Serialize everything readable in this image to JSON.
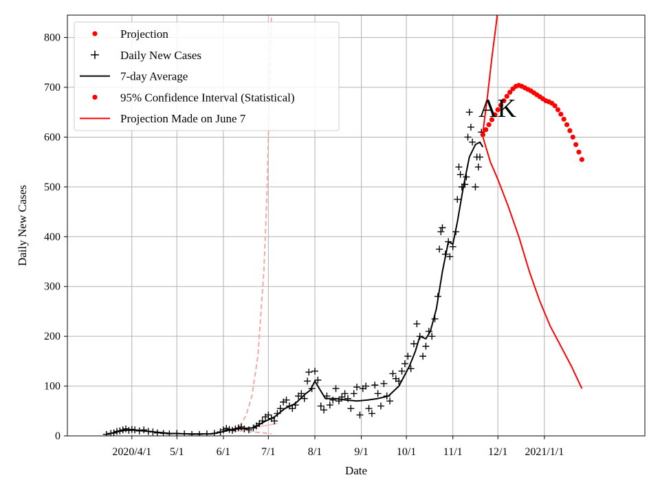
{
  "chart_data": {
    "type": "line",
    "title": "",
    "annotation": "AK",
    "xlabel": "Date",
    "ylabel": "Daily New Cases",
    "xlim": [
      "2020-02-18",
      "2021-03-09"
    ],
    "ylim": [
      0,
      845
    ],
    "grid": true,
    "legend": {
      "position": "top-left",
      "entries": [
        {
          "label": "Projection",
          "marker": "dot",
          "color": "#ff0000"
        },
        {
          "label": "Daily New Cases",
          "marker": "plus",
          "color": "#000000"
        },
        {
          "label": "7-day Average",
          "marker": "line",
          "color": "#000000"
        },
        {
          "label": "95% Confidence Interval (Statistical)",
          "marker": "dot",
          "color": "#ff0000"
        },
        {
          "label": "Projection Made on June 7",
          "marker": "line",
          "color": "#ff0000"
        }
      ]
    },
    "x_ticks": [
      {
        "date": "2020-04-01",
        "label": "2020/4/1"
      },
      {
        "date": "2020-05-01",
        "label": "5/1"
      },
      {
        "date": "2020-06-01",
        "label": "6/1"
      },
      {
        "date": "2020-07-01",
        "label": "7/1"
      },
      {
        "date": "2020-08-01",
        "label": "8/1"
      },
      {
        "date": "2020-09-01",
        "label": "9/1"
      },
      {
        "date": "2020-10-01",
        "label": "10/1"
      },
      {
        "date": "2020-11-01",
        "label": "11/1"
      },
      {
        "date": "2020-12-01",
        "label": "12/1"
      },
      {
        "date": "2021-01-01",
        "label": "2021/1/1"
      }
    ],
    "y_ticks": [
      0,
      100,
      200,
      300,
      400,
      500,
      600,
      700,
      800
    ],
    "series": [
      {
        "name": "Daily New Cases",
        "style": "plus",
        "color": "#000000",
        "points": [
          [
            "2020-03-15",
            3
          ],
          [
            "2020-03-18",
            5
          ],
          [
            "2020-03-20",
            6
          ],
          [
            "2020-03-22",
            9
          ],
          [
            "2020-03-24",
            10
          ],
          [
            "2020-03-26",
            12
          ],
          [
            "2020-03-28",
            14
          ],
          [
            "2020-03-30",
            11
          ],
          [
            "2020-04-01",
            13
          ],
          [
            "2020-04-03",
            12
          ],
          [
            "2020-04-06",
            10
          ],
          [
            "2020-04-09",
            12
          ],
          [
            "2020-04-12",
            9
          ],
          [
            "2020-04-15",
            8
          ],
          [
            "2020-04-18",
            6
          ],
          [
            "2020-04-22",
            5
          ],
          [
            "2020-04-26",
            4
          ],
          [
            "2020-05-01",
            5
          ],
          [
            "2020-05-06",
            4
          ],
          [
            "2020-05-11",
            3
          ],
          [
            "2020-05-16",
            3
          ],
          [
            "2020-05-21",
            4
          ],
          [
            "2020-05-26",
            5
          ],
          [
            "2020-05-30",
            8
          ],
          [
            "2020-06-01",
            12
          ],
          [
            "2020-06-03",
            15
          ],
          [
            "2020-06-05",
            13
          ],
          [
            "2020-06-07",
            11
          ],
          [
            "2020-06-09",
            14
          ],
          [
            "2020-06-11",
            16
          ],
          [
            "2020-06-13",
            18
          ],
          [
            "2020-06-15",
            14
          ],
          [
            "2020-06-18",
            12
          ],
          [
            "2020-06-21",
            16
          ],
          [
            "2020-06-23",
            20
          ],
          [
            "2020-06-25",
            25
          ],
          [
            "2020-06-27",
            30
          ],
          [
            "2020-06-29",
            38
          ],
          [
            "2020-07-01",
            42
          ],
          [
            "2020-07-03",
            35
          ],
          [
            "2020-07-05",
            30
          ],
          [
            "2020-07-07",
            45
          ],
          [
            "2020-07-09",
            55
          ],
          [
            "2020-07-11",
            68
          ],
          [
            "2020-07-13",
            72
          ],
          [
            "2020-07-15",
            60
          ],
          [
            "2020-07-17",
            55
          ],
          [
            "2020-07-19",
            62
          ],
          [
            "2020-07-21",
            80
          ],
          [
            "2020-07-23",
            85
          ],
          [
            "2020-07-25",
            75
          ],
          [
            "2020-07-27",
            110
          ],
          [
            "2020-07-28",
            128
          ],
          [
            "2020-07-30",
            95
          ],
          [
            "2020-08-01",
            130
          ],
          [
            "2020-08-03",
            112
          ],
          [
            "2020-08-05",
            60
          ],
          [
            "2020-08-07",
            52
          ],
          [
            "2020-08-09",
            80
          ],
          [
            "2020-08-11",
            62
          ],
          [
            "2020-08-13",
            72
          ],
          [
            "2020-08-15",
            95
          ],
          [
            "2020-08-17",
            70
          ],
          [
            "2020-08-19",
            78
          ],
          [
            "2020-08-21",
            85
          ],
          [
            "2020-08-23",
            75
          ],
          [
            "2020-08-25",
            55
          ],
          [
            "2020-08-27",
            85
          ],
          [
            "2020-08-29",
            98
          ],
          [
            "2020-08-31",
            42
          ],
          [
            "2020-09-02",
            95
          ],
          [
            "2020-09-04",
            100
          ],
          [
            "2020-09-06",
            55
          ],
          [
            "2020-09-08",
            45
          ],
          [
            "2020-09-10",
            102
          ],
          [
            "2020-09-12",
            85
          ],
          [
            "2020-09-14",
            60
          ],
          [
            "2020-09-16",
            105
          ],
          [
            "2020-09-18",
            80
          ],
          [
            "2020-09-20",
            70
          ],
          [
            "2020-09-22",
            125
          ],
          [
            "2020-09-24",
            115
          ],
          [
            "2020-09-26",
            110
          ],
          [
            "2020-09-28",
            130
          ],
          [
            "2020-09-30",
            145
          ],
          [
            "2020-10-02",
            160
          ],
          [
            "2020-10-04",
            135
          ],
          [
            "2020-10-06",
            185
          ],
          [
            "2020-10-08",
            225
          ],
          [
            "2020-10-10",
            200
          ],
          [
            "2020-10-12",
            160
          ],
          [
            "2020-10-14",
            180
          ],
          [
            "2020-10-16",
            210
          ],
          [
            "2020-10-18",
            200
          ],
          [
            "2020-10-20",
            235
          ],
          [
            "2020-10-22",
            280
          ],
          [
            "2020-10-23",
            375
          ],
          [
            "2020-10-24",
            410
          ],
          [
            "2020-10-25",
            418
          ],
          [
            "2020-10-27",
            365
          ],
          [
            "2020-10-29",
            390
          ],
          [
            "2020-10-30",
            360
          ],
          [
            "2020-11-01",
            380
          ],
          [
            "2020-11-03",
            410
          ],
          [
            "2020-11-04",
            475
          ],
          [
            "2020-11-05",
            540
          ],
          [
            "2020-11-06",
            525
          ],
          [
            "2020-11-07",
            500
          ],
          [
            "2020-11-09",
            505
          ],
          [
            "2020-11-10",
            520
          ],
          [
            "2020-11-11",
            600
          ],
          [
            "2020-11-12",
            650
          ],
          [
            "2020-11-13",
            620
          ],
          [
            "2020-11-14",
            590
          ],
          [
            "2020-11-16",
            500
          ],
          [
            "2020-11-17",
            560
          ],
          [
            "2020-11-18",
            540
          ],
          [
            "2020-11-19",
            560
          ],
          [
            "2020-11-20",
            610
          ]
        ]
      },
      {
        "name": "7-day Average",
        "style": "line",
        "color": "#000000",
        "points": [
          [
            "2020-03-15",
            3
          ],
          [
            "2020-03-22",
            8
          ],
          [
            "2020-03-29",
            12
          ],
          [
            "2020-04-05",
            11
          ],
          [
            "2020-04-12",
            9
          ],
          [
            "2020-04-19",
            7
          ],
          [
            "2020-04-26",
            5
          ],
          [
            "2020-05-10",
            4
          ],
          [
            "2020-05-24",
            4
          ],
          [
            "2020-05-31",
            8
          ],
          [
            "2020-06-07",
            13
          ],
          [
            "2020-06-14",
            15
          ],
          [
            "2020-06-21",
            16
          ],
          [
            "2020-06-28",
            28
          ],
          [
            "2020-07-05",
            38
          ],
          [
            "2020-07-12",
            55
          ],
          [
            "2020-07-19",
            65
          ],
          [
            "2020-07-26",
            85
          ],
          [
            "2020-07-29",
            92
          ],
          [
            "2020-08-01",
            110
          ],
          [
            "2020-08-04",
            95
          ],
          [
            "2020-08-08",
            75
          ],
          [
            "2020-08-15",
            75
          ],
          [
            "2020-08-22",
            72
          ],
          [
            "2020-08-29",
            70
          ],
          [
            "2020-09-05",
            72
          ],
          [
            "2020-09-12",
            75
          ],
          [
            "2020-09-19",
            80
          ],
          [
            "2020-09-26",
            100
          ],
          [
            "2020-10-03",
            140
          ],
          [
            "2020-10-07",
            170
          ],
          [
            "2020-10-10",
            200
          ],
          [
            "2020-10-14",
            195
          ],
          [
            "2020-10-17",
            210
          ],
          [
            "2020-10-21",
            255
          ],
          [
            "2020-10-25",
            330
          ],
          [
            "2020-10-29",
            390
          ],
          [
            "2020-11-01",
            385
          ],
          [
            "2020-11-04",
            430
          ],
          [
            "2020-11-08",
            500
          ],
          [
            "2020-11-12",
            560
          ],
          [
            "2020-11-16",
            585
          ],
          [
            "2020-11-19",
            590
          ],
          [
            "2020-11-21",
            580
          ]
        ]
      },
      {
        "name": "Projection",
        "style": "dots",
        "color": "#ff0000",
        "points": [
          [
            "2020-11-21",
            605
          ],
          [
            "2020-11-23",
            615
          ],
          [
            "2020-11-25",
            625
          ],
          [
            "2020-11-27",
            635
          ],
          [
            "2020-11-29",
            645
          ],
          [
            "2020-12-01",
            655
          ],
          [
            "2020-12-03",
            664
          ],
          [
            "2020-12-05",
            673
          ],
          [
            "2020-12-07",
            682
          ],
          [
            "2020-12-09",
            690
          ],
          [
            "2020-12-11",
            697
          ],
          [
            "2020-12-13",
            702
          ],
          [
            "2020-12-15",
            704
          ],
          [
            "2020-12-17",
            702
          ],
          [
            "2020-12-19",
            699
          ],
          [
            "2020-12-21",
            696
          ],
          [
            "2020-12-23",
            693
          ],
          [
            "2020-12-25",
            689
          ],
          [
            "2020-12-27",
            685
          ],
          [
            "2020-12-29",
            681
          ],
          [
            "2020-12-31",
            677
          ],
          [
            "2021-01-02",
            673
          ],
          [
            "2021-01-04",
            671
          ],
          [
            "2021-01-06",
            668
          ],
          [
            "2021-01-08",
            663
          ],
          [
            "2021-01-10",
            655
          ],
          [
            "2021-01-12",
            646
          ],
          [
            "2021-01-14",
            636
          ],
          [
            "2021-01-16",
            625
          ],
          [
            "2021-01-18",
            613
          ],
          [
            "2021-01-20",
            600
          ],
          [
            "2021-01-22",
            585
          ],
          [
            "2021-01-24",
            570
          ],
          [
            "2021-01-26",
            555
          ]
        ]
      },
      {
        "name": "95% Confidence Interval (Statistical)",
        "style": "line",
        "color": "#ff0000",
        "points": [
          [
            "2020-11-21",
            610
          ],
          [
            "2020-11-24",
            680
          ],
          [
            "2020-11-27",
            760
          ],
          [
            "2020-11-30",
            830
          ],
          [
            "2020-12-01",
            860
          ]
        ]
      },
      {
        "name": "95% Confidence Interval (Statistical)",
        "style": "line",
        "color": "#ff0000",
        "points": [
          [
            "2020-11-21",
            600
          ],
          [
            "2020-11-26",
            550
          ],
          [
            "2020-12-01",
            515
          ],
          [
            "2020-12-08",
            460
          ],
          [
            "2020-12-15",
            400
          ],
          [
            "2020-12-22",
            330
          ],
          [
            "2020-12-29",
            270
          ],
          [
            "2021-01-05",
            220
          ],
          [
            "2021-01-12",
            180
          ],
          [
            "2021-01-19",
            140
          ],
          [
            "2021-01-26",
            95
          ]
        ]
      },
      {
        "name": "Projection Made on June 7",
        "style": "dashed",
        "color": "#f4a8a8",
        "points": [
          [
            "2020-06-07",
            12
          ],
          [
            "2020-06-12",
            20
          ],
          [
            "2020-06-16",
            40
          ],
          [
            "2020-06-20",
            80
          ],
          [
            "2020-06-24",
            160
          ],
          [
            "2020-06-28",
            330
          ],
          [
            "2020-06-30",
            480
          ],
          [
            "2020-07-01",
            600
          ],
          [
            "2020-07-02",
            720
          ],
          [
            "2020-07-03",
            840
          ]
        ]
      },
      {
        "name": "Projection Made on June 7",
        "style": "dashed",
        "color": "#f4a8a8",
        "points": [
          [
            "2020-06-07",
            10
          ],
          [
            "2020-06-14",
            10
          ],
          [
            "2020-06-21",
            8
          ],
          [
            "2020-06-28",
            6
          ],
          [
            "2020-07-03",
            4
          ]
        ]
      },
      {
        "name": "Projection Made on June 7",
        "style": "line",
        "color": "#f7c0c0",
        "points": [
          [
            "2020-06-07",
            12
          ],
          [
            "2020-06-14",
            14
          ],
          [
            "2020-06-21",
            17
          ],
          [
            "2020-06-28",
            20
          ],
          [
            "2020-07-05",
            24
          ],
          [
            "2020-07-07",
            25
          ]
        ]
      }
    ]
  }
}
